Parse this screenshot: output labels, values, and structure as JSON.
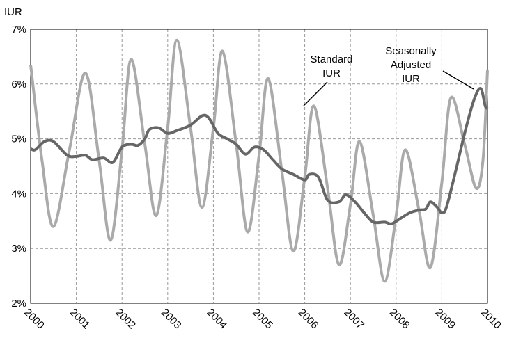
{
  "chart_data": {
    "type": "line",
    "y_label": "IUR",
    "xlim": [
      2000,
      2010
    ],
    "xticks": [
      2000,
      2001,
      2002,
      2003,
      2004,
      2005,
      2006,
      2007,
      2008,
      2009,
      2010
    ],
    "ylim": [
      2,
      7
    ],
    "yticks": [
      {
        "value": 2,
        "label": "2%"
      },
      {
        "value": 3,
        "label": "3%"
      },
      {
        "value": 4,
        "label": "4%"
      },
      {
        "value": 5,
        "label": "5%"
      },
      {
        "value": 6,
        "label": "6%"
      },
      {
        "value": 7,
        "label": "7%"
      }
    ],
    "grid": true,
    "annotations": [
      {
        "lines": [
          "Standard",
          "IUR"
        ]
      },
      {
        "lines": [
          "Seasonally",
          "Adjusted",
          "IUR"
        ]
      }
    ],
    "series": [
      {
        "name": "Standard IUR",
        "color": "#aaaaaa",
        "x": [
          2000.0,
          2000.25,
          2000.5,
          2000.85,
          2001.2,
          2001.5,
          2001.75,
          2002.0,
          2002.2,
          2002.5,
          2002.75,
          2003.0,
          2003.2,
          2003.5,
          2003.75,
          2004.0,
          2004.2,
          2004.5,
          2004.75,
          2005.0,
          2005.2,
          2005.5,
          2005.75,
          2006.0,
          2006.2,
          2006.5,
          2006.75,
          2007.0,
          2007.2,
          2007.5,
          2007.75,
          2008.0,
          2008.2,
          2008.5,
          2008.75,
          2009.0,
          2009.2,
          2009.5,
          2009.75,
          2009.9,
          2010.0
        ],
        "values": [
          6.35,
          4.6,
          3.4,
          4.8,
          6.2,
          4.6,
          3.15,
          4.8,
          6.45,
          4.9,
          3.6,
          5.2,
          6.8,
          5.2,
          3.75,
          5.2,
          6.6,
          4.9,
          3.3,
          4.7,
          6.1,
          4.4,
          2.95,
          4.3,
          5.6,
          4.1,
          2.7,
          3.8,
          4.95,
          3.6,
          2.4,
          3.6,
          4.8,
          3.7,
          2.65,
          4.2,
          5.75,
          4.9,
          4.1,
          4.6,
          6.25
        ]
      },
      {
        "name": "Seasonally Adjusted IUR",
        "color": "#666666",
        "x": [
          2000.0,
          2000.1,
          2000.3,
          2000.5,
          2000.8,
          2001.0,
          2001.2,
          2001.35,
          2001.6,
          2001.8,
          2002.0,
          2002.2,
          2002.35,
          2002.5,
          2002.6,
          2002.8,
          2003.0,
          2003.2,
          2003.5,
          2003.75,
          2003.9,
          2004.1,
          2004.3,
          2004.5,
          2004.7,
          2004.9,
          2005.1,
          2005.3,
          2005.5,
          2005.75,
          2006.0,
          2006.1,
          2006.3,
          2006.5,
          2006.75,
          2006.9,
          2007.1,
          2007.3,
          2007.5,
          2007.75,
          2007.9,
          2008.1,
          2008.3,
          2008.5,
          2008.65,
          2008.75,
          2008.9,
          2009.0,
          2009.1,
          2009.3,
          2009.5,
          2009.7,
          2009.85,
          2009.95,
          2010.0
        ],
        "values": [
          4.82,
          4.8,
          4.95,
          4.95,
          4.7,
          4.68,
          4.7,
          4.62,
          4.65,
          4.57,
          4.85,
          4.9,
          4.88,
          5.0,
          5.17,
          5.2,
          5.1,
          5.15,
          5.25,
          5.42,
          5.38,
          5.1,
          5.0,
          4.9,
          4.72,
          4.85,
          4.8,
          4.62,
          4.45,
          4.35,
          4.25,
          4.35,
          4.3,
          3.88,
          3.85,
          3.98,
          3.85,
          3.65,
          3.48,
          3.48,
          3.45,
          3.55,
          3.65,
          3.7,
          3.72,
          3.85,
          3.75,
          3.65,
          3.75,
          4.4,
          5.1,
          5.7,
          5.92,
          5.6,
          5.55
        ]
      }
    ]
  }
}
